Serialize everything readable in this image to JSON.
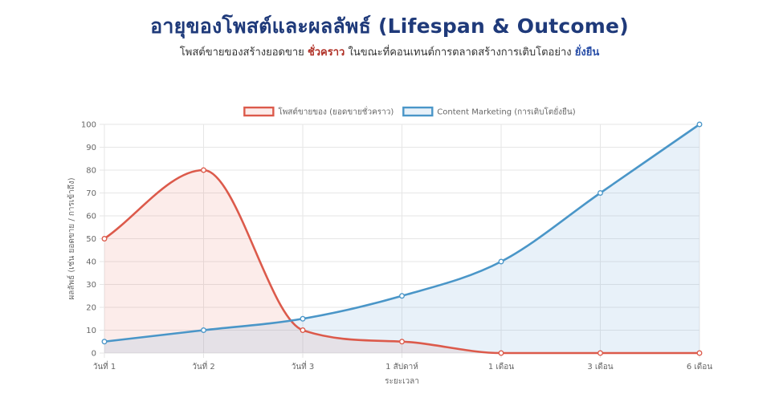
{
  "header": {
    "title": "อายุของโพสต์และผลลัพธ์ (Lifespan & Outcome)",
    "subtitle_part1": "โพสต์ขายของสร้างยอดขาย ",
    "subtitle_emph1": "ชั่วคราว",
    "subtitle_part2": " ในขณะที่คอนเทนต์การตลาดสร้างการเติบโตอย่าง",
    "subtitle_emph2": "ยั่งยืน"
  },
  "colors": {
    "red": "#dc5a4b",
    "red_fill": "rgba(232, 110, 95, 0.13)",
    "blue": "#4a96c8",
    "blue_fill": "rgba(120, 170, 220, 0.17)",
    "grid": "#e6e6e6"
  },
  "chart_data": {
    "type": "line",
    "xlabel": "ระยะเวลา",
    "ylabel": "ผลลัพธ์ (เช่น ยอดขาย / การเข้าถึง)",
    "ylim": [
      0,
      100
    ],
    "yticks": [
      0,
      10,
      20,
      30,
      40,
      50,
      60,
      70,
      80,
      90,
      100
    ],
    "categories": [
      "วันที่ 1",
      "วันที่ 2",
      "วันที่ 3",
      "1 สัปดาห์",
      "1 เดือน",
      "3 เดือน",
      "6 เดือน"
    ],
    "legend_position": "top",
    "grid": true,
    "series": [
      {
        "name": "โพสต์ขายของ (ยอดขายชั่วคราว)",
        "color_key": "red",
        "values": [
          50,
          80,
          10,
          5,
          0,
          0,
          0
        ]
      },
      {
        "name": "Content Marketing (การเติบโตยั่งยืน)",
        "color_key": "blue",
        "values": [
          5,
          10,
          15,
          25,
          40,
          70,
          100
        ]
      }
    ]
  }
}
